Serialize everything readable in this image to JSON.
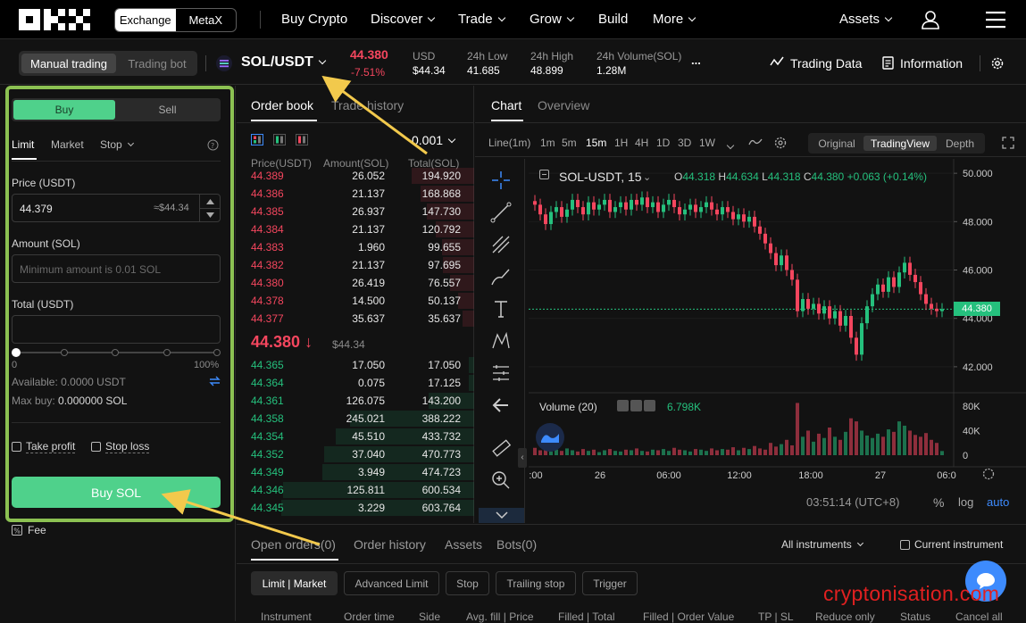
{
  "nav": {
    "exchange": "Exchange",
    "metax": "MetaX",
    "items": [
      "Buy Crypto",
      "Discover",
      "Trade",
      "Grow",
      "Build",
      "More"
    ],
    "assets": "Assets"
  },
  "ticker": {
    "mode_manual": "Manual trading",
    "mode_bot": "Trading bot",
    "pair": "SOL/USDT",
    "price": "44.380",
    "change": "-7.51%",
    "usd_label": "USD",
    "usd_value": "$44.34",
    "low_label": "24h Low",
    "low_value": "41.685",
    "high_label": "24h High",
    "high_value": "48.899",
    "vol_label": "24h Volume(SOL)",
    "vol_value": "1.28M",
    "more": "...",
    "trading_data": "Trading Data",
    "information": "Information"
  },
  "form": {
    "buy": "Buy",
    "sell": "Sell",
    "types": [
      "Limit",
      "Market",
      "Stop"
    ],
    "price_label": "Price (USDT)",
    "price_value": "44.379",
    "price_usd": "≈$44.34",
    "amount_label": "Amount (SOL)",
    "amount_placeholder": "Minimum amount is 0.01 SOL",
    "total_label": "Total (USDT)",
    "slider_min": "0",
    "slider_max": "100%",
    "available": "Available: 0.0000 USDT",
    "maxbuy_label": "Max buy:",
    "maxbuy_value": "0.000000 SOL",
    "take_profit": "Take profit",
    "stop_loss": "Stop loss",
    "submit": "Buy SOL",
    "fee": "Fee"
  },
  "orderbook": {
    "tab_book": "Order book",
    "tab_history": "Trade history",
    "precision": "0.001",
    "col_price": "Price(USDT)",
    "col_amount": "Amount(SOL)",
    "col_total": "Total(SOL)",
    "asks": [
      {
        "p": "44.389",
        "a": "26.052",
        "t": "194.920"
      },
      {
        "p": "44.386",
        "a": "21.137",
        "t": "168.868"
      },
      {
        "p": "44.385",
        "a": "26.937",
        "t": "147.730"
      },
      {
        "p": "44.384",
        "a": "21.137",
        "t": "120.792"
      },
      {
        "p": "44.383",
        "a": "1.960",
        "t": "99.655"
      },
      {
        "p": "44.382",
        "a": "21.137",
        "t": "97.695"
      },
      {
        "p": "44.380",
        "a": "26.419",
        "t": "76.557"
      },
      {
        "p": "44.378",
        "a": "14.500",
        "t": "50.137"
      },
      {
        "p": "44.377",
        "a": "35.637",
        "t": "35.637"
      }
    ],
    "last_price": "44.380",
    "last_arrow": "↓",
    "last_usd": "$44.34",
    "bids": [
      {
        "p": "44.365",
        "a": "17.050",
        "t": "17.050"
      },
      {
        "p": "44.364",
        "a": "0.075",
        "t": "17.125"
      },
      {
        "p": "44.361",
        "a": "126.075",
        "t": "143.200"
      },
      {
        "p": "44.358",
        "a": "245.021",
        "t": "388.222"
      },
      {
        "p": "44.354",
        "a": "45.510",
        "t": "433.732"
      },
      {
        "p": "44.352",
        "a": "37.040",
        "t": "470.773"
      },
      {
        "p": "44.349",
        "a": "3.949",
        "t": "474.723"
      },
      {
        "p": "44.346",
        "a": "125.811",
        "t": "600.534"
      },
      {
        "p": "44.345",
        "a": "3.229",
        "t": "603.764"
      }
    ]
  },
  "chart": {
    "tab_chart": "Chart",
    "tab_overview": "Overview",
    "timeframes": [
      "Line(1m)",
      "1m",
      "5m",
      "15m",
      "1H",
      "4H",
      "1D",
      "3D",
      "1W"
    ],
    "views": [
      "Original",
      "TradingView",
      "Depth"
    ],
    "symbol": "SOL-USDT, 15",
    "o_label": "O",
    "o": "44.318",
    "h_label": "H",
    "h": "44.634",
    "l_label": "L",
    "l": "44.318",
    "c_label": "C",
    "c": "44.380",
    "chg": "+0.063 (+0.14%)",
    "price_axis": [
      "50.000",
      "48.000",
      "46.000",
      "44.000",
      "42.000"
    ],
    "price_tag": "44.380",
    "vol_label": "Volume (20)",
    "vol_value": "6.798K",
    "vol_axis": [
      "80K",
      "40K",
      "0"
    ],
    "time_axis": [
      ":00",
      "26",
      "06:00",
      "12:00",
      "18:00",
      "27",
      "06:0"
    ],
    "clock": "03:51:14 (UTC+8)",
    "pct": "%",
    "log": "log",
    "auto": "auto"
  },
  "chart_data": {
    "type": "candlestick",
    "symbol": "SOL-USDT",
    "interval": "15",
    "ylim": [
      41,
      50.3
    ],
    "closes": [
      48.7,
      48.3,
      47.9,
      48.4,
      48.6,
      48.2,
      48.5,
      48.9,
      48.6,
      48.3,
      48.8,
      48.5,
      48.7,
      48.9,
      48.4,
      48.6,
      48.8,
      48.5,
      48.9,
      48.7,
      49.0,
      48.6,
      48.8,
      48.4,
      48.7,
      48.9,
      48.6,
      48.3,
      48.5,
      48.7,
      48.4,
      48.6,
      48.8,
      48.5,
      48.3,
      48.6,
      48.4,
      48.1,
      48.3,
      48.0,
      48.2,
      47.8,
      47.5,
      47.1,
      46.7,
      46.2,
      46.6,
      46.0,
      45.6,
      44.3,
      44.8,
      44.4,
      44.6,
      44.2,
      44.5,
      44.0,
      44.3,
      43.7,
      44.1,
      43.2,
      42.5,
      43.8,
      44.5,
      45.0,
      45.4,
      45.1,
      45.7,
      45.3,
      45.9,
      46.3,
      45.8,
      45.5,
      45.0,
      44.6,
      44.4,
      44.3,
      44.38
    ],
    "volumes": [
      12,
      8,
      10,
      6,
      9,
      7,
      11,
      8,
      6,
      10,
      7,
      9,
      5,
      8,
      10,
      7,
      6,
      9,
      8,
      11,
      7,
      6,
      9,
      8,
      10,
      7,
      12,
      9,
      8,
      6,
      10,
      9,
      7,
      11,
      8,
      10,
      9,
      13,
      8,
      12,
      10,
      15,
      11,
      9,
      20,
      14,
      18,
      25,
      16,
      85,
      30,
      40,
      22,
      35,
      28,
      45,
      30,
      25,
      38,
      60,
      55,
      40,
      32,
      28,
      35,
      30,
      42,
      38,
      55,
      48,
      40,
      33,
      30,
      36,
      25,
      20,
      6.8
    ],
    "volume_unit": "K"
  },
  "bottom": {
    "tabs": [
      "Open orders(0)",
      "Order history",
      "Assets",
      "Bots(0)"
    ],
    "instruments": "All instruments",
    "current": "Current instrument",
    "filters": [
      "Limit | Market",
      "Advanced Limit",
      "Stop",
      "Trailing stop",
      "Trigger"
    ],
    "columns": [
      "Instrument",
      "Order time",
      "Side",
      "Avg. fill | Price",
      "Filled | Total",
      "Filled | Order Value",
      "TP | SL",
      "Reduce only",
      "Status",
      "Cancel all"
    ]
  },
  "watermark": "cryptonisation.com",
  "colors": {
    "green": "#25c07d",
    "red": "#f4465e",
    "accent": "#4fd18b",
    "highlight": "#8cc152",
    "arrow": "#f2c94c"
  }
}
